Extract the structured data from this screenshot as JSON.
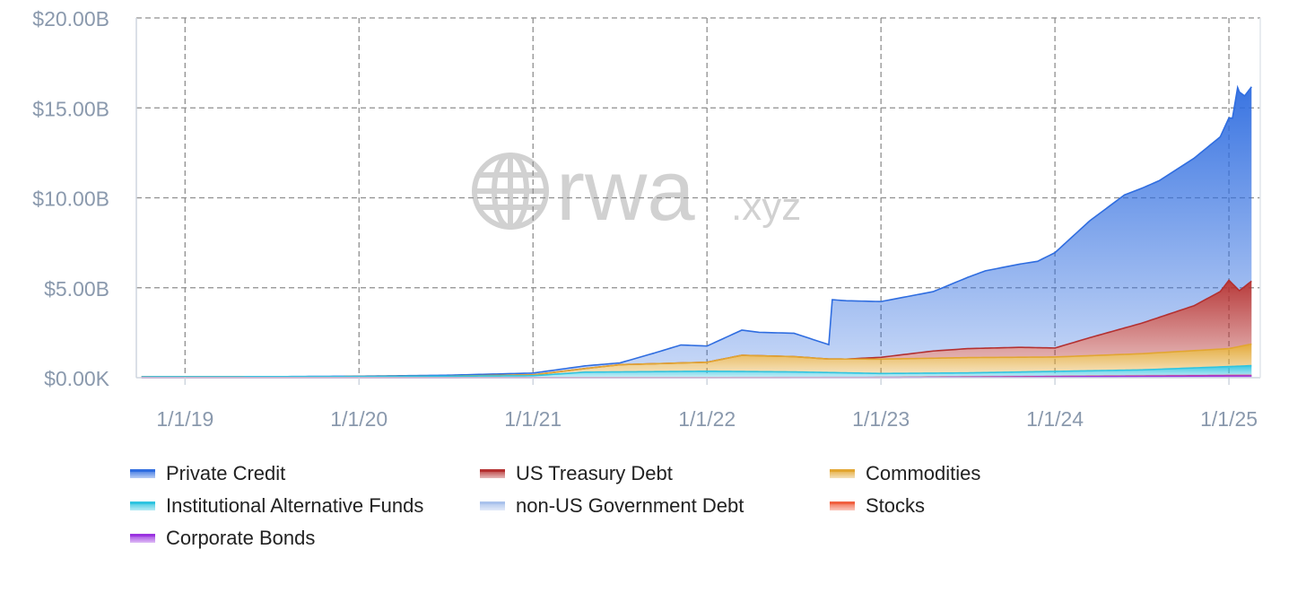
{
  "chart_data": {
    "type": "area",
    "stacked": true,
    "y_ticks": [
      "$0.00K",
      "$5.00B",
      "$10.00B",
      "$15.00B",
      "$20.00B"
    ],
    "x_ticks": [
      "1/1/19",
      "1/1/20",
      "1/1/21",
      "1/1/22",
      "1/1/23",
      "1/1/24",
      "1/1/25"
    ],
    "ylim": [
      0,
      20
    ],
    "xlim": [
      2018.72,
      2025.18
    ],
    "y_unit": "B USD",
    "grid": true,
    "legend_position": "bottom",
    "watermark": {
      "brand": "rwa",
      "suffix": ".xyz",
      "icon": "globe-icon"
    },
    "series": [
      {
        "name": "Corporate Bonds",
        "color": "#9b33e0",
        "points": [
          [
            2018.75,
            0
          ],
          [
            2023.0,
            0
          ],
          [
            2024.0,
            0.05
          ],
          [
            2025.0,
            0.1
          ],
          [
            2025.13,
            0.1
          ]
        ]
      },
      {
        "name": "Stocks",
        "color": "#f06040",
        "points": [
          [
            2018.75,
            0
          ],
          [
            2025.13,
            0.02
          ]
        ]
      },
      {
        "name": "non-US Government Debt",
        "color": "#a9c2ec",
        "points": [
          [
            2018.75,
            0
          ],
          [
            2022.0,
            0
          ],
          [
            2023.0,
            0.02
          ],
          [
            2025.13,
            0.05
          ]
        ]
      },
      {
        "name": "Institutional Alternative Funds",
        "color": "#2fc4e0",
        "points": [
          [
            2018.75,
            0.05
          ],
          [
            2020.0,
            0.06
          ],
          [
            2021.0,
            0.1
          ],
          [
            2021.3,
            0.3
          ],
          [
            2022.0,
            0.35
          ],
          [
            2022.5,
            0.3
          ],
          [
            2023.0,
            0.2
          ],
          [
            2023.5,
            0.2
          ],
          [
            2024.0,
            0.25
          ],
          [
            2024.5,
            0.3
          ],
          [
            2025.0,
            0.45
          ],
          [
            2025.13,
            0.5
          ]
        ]
      },
      {
        "name": "Commodities",
        "color": "#e2a631",
        "points": [
          [
            2018.75,
            0
          ],
          [
            2020.5,
            0
          ],
          [
            2021.0,
            0.05
          ],
          [
            2021.3,
            0.2
          ],
          [
            2021.5,
            0.4
          ],
          [
            2022.0,
            0.5
          ],
          [
            2022.2,
            0.9
          ],
          [
            2022.5,
            0.85
          ],
          [
            2022.7,
            0.75
          ],
          [
            2023.0,
            0.8
          ],
          [
            2023.5,
            0.85
          ],
          [
            2024.0,
            0.8
          ],
          [
            2024.5,
            0.9
          ],
          [
            2025.0,
            1.0
          ],
          [
            2025.13,
            1.2
          ]
        ]
      },
      {
        "name": "US Treasury Debt",
        "color": "#b43030",
        "points": [
          [
            2018.75,
            0
          ],
          [
            2022.8,
            0
          ],
          [
            2023.0,
            0.1
          ],
          [
            2023.3,
            0.4
          ],
          [
            2023.5,
            0.5
          ],
          [
            2023.8,
            0.55
          ],
          [
            2024.0,
            0.5
          ],
          [
            2024.2,
            1.0
          ],
          [
            2024.5,
            1.7
          ],
          [
            2024.8,
            2.5
          ],
          [
            2024.95,
            3.2
          ],
          [
            2025.0,
            3.8
          ],
          [
            2025.06,
            3.1
          ],
          [
            2025.13,
            3.5
          ]
        ]
      },
      {
        "name": "Private Credit",
        "color": "#2f6de0",
        "points": [
          [
            2018.75,
            0
          ],
          [
            2019.5,
            0
          ],
          [
            2020.0,
            0.02
          ],
          [
            2020.5,
            0.05
          ],
          [
            2021.0,
            0.1
          ],
          [
            2021.3,
            0.15
          ],
          [
            2021.5,
            0.1
          ],
          [
            2021.7,
            0.6
          ],
          [
            2021.85,
            1.0
          ],
          [
            2022.0,
            0.9
          ],
          [
            2022.2,
            1.4
          ],
          [
            2022.3,
            1.3
          ],
          [
            2022.5,
            1.3
          ],
          [
            2022.7,
            0.8
          ],
          [
            2022.72,
            3.3
          ],
          [
            2023.0,
            3.1
          ],
          [
            2023.3,
            3.3
          ],
          [
            2023.6,
            4.3
          ],
          [
            2023.9,
            4.8
          ],
          [
            2024.0,
            5.3
          ],
          [
            2024.2,
            6.5
          ],
          [
            2024.4,
            7.4
          ],
          [
            2024.6,
            7.6
          ],
          [
            2024.8,
            8.2
          ],
          [
            2024.95,
            8.6
          ],
          [
            2025.02,
            9.2
          ],
          [
            2025.05,
            11.2
          ],
          [
            2025.09,
            10.6
          ],
          [
            2025.13,
            10.8
          ]
        ]
      }
    ],
    "legend": [
      {
        "name": "Private Credit",
        "color": "#2f6de0"
      },
      {
        "name": "US Treasury Debt",
        "color": "#b43030"
      },
      {
        "name": "Commodities",
        "color": "#e2a631"
      },
      {
        "name": "Institutional Alternative Funds",
        "color": "#2fc4e0"
      },
      {
        "name": "non-US Government Debt",
        "color": "#a9c2ec"
      },
      {
        "name": "Stocks",
        "color": "#f06040"
      },
      {
        "name": "Corporate Bonds",
        "color": "#9b33e0"
      }
    ]
  }
}
